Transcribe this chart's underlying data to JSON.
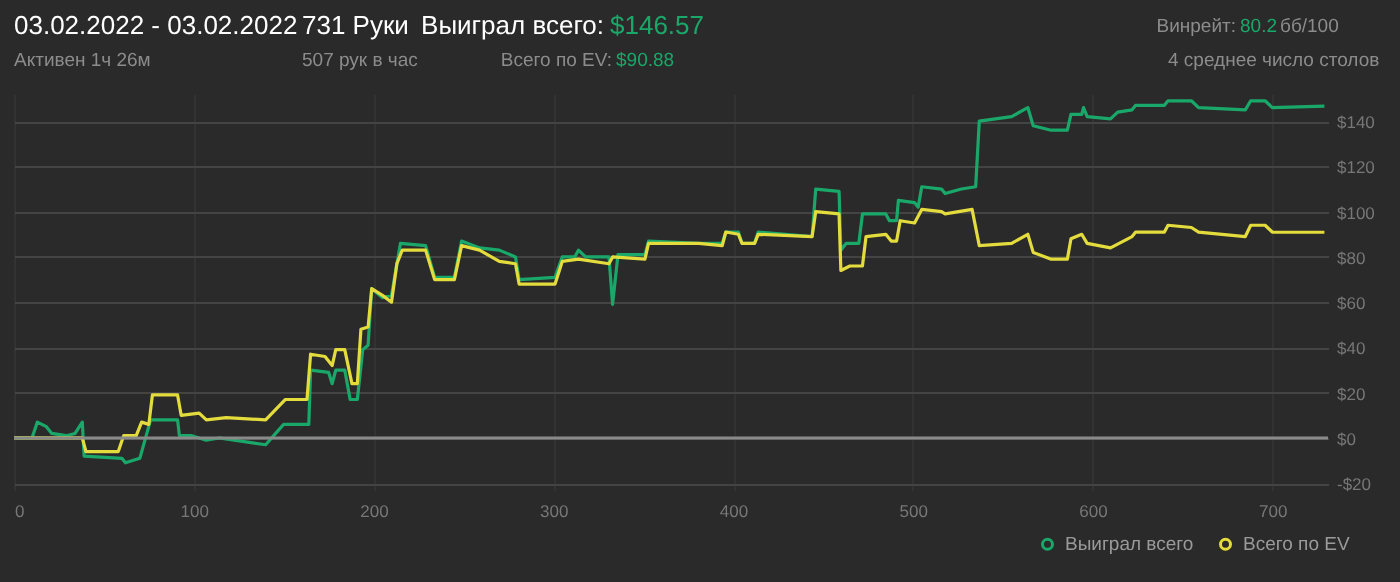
{
  "chart_data": {
    "type": "line",
    "title": "03.02.2022 - 03.02.2022",
    "subtitle": "Активен 1ч 26м",
    "annotations": [
      "731 Руки",
      "507 рук в час",
      "Выиграл всего:",
      "$146.57",
      "Всего по EV:",
      "$90.88",
      "Винрейт:",
      "80.2",
      "бб/100",
      "4 среднее число столов"
    ],
    "xlim": [
      0,
      731
    ],
    "xticks": [
      0,
      100,
      200,
      300,
      400,
      500,
      600,
      700
    ],
    "ylim": [
      -23,
      152
    ],
    "yticks": [
      {
        "value": -20,
        "label": "-$20"
      },
      {
        "value": 0,
        "label": "$0"
      },
      {
        "value": 20,
        "label": "$20"
      },
      {
        "value": 40,
        "label": "$40"
      },
      {
        "value": 60,
        "label": "$60"
      },
      {
        "value": 80,
        "label": "$80"
      },
      {
        "value": 100,
        "label": "$100"
      },
      {
        "value": 120,
        "label": "$120"
      },
      {
        "value": 140,
        "label": "$140"
      }
    ],
    "grid": true,
    "legend": "bottom right",
    "ref_lines": [
      {
        "axis": "y",
        "value": 0,
        "color": "#8a8a8a"
      }
    ],
    "series": [
      {
        "name": "Выиграл всего",
        "color": "#1aa86a",
        "x": [
          0,
          10,
          13,
          18,
          21,
          29,
          34,
          38,
          39,
          60,
          62,
          70,
          76,
          91,
          92,
          99,
          107,
          114,
          140,
          150,
          164,
          165,
          175,
          177,
          179,
          184,
          187,
          191,
          194,
          197,
          199,
          205,
          210,
          215,
          229,
          234,
          245,
          249,
          259,
          270,
          279,
          281,
          301,
          305,
          312,
          314,
          318,
          331,
          333,
          336,
          351,
          353,
          381,
          394,
          396,
          403,
          405,
          412,
          414,
          444,
          446,
          459,
          460,
          463,
          470,
          472,
          485,
          487,
          491,
          492,
          501,
          503,
          505,
          516,
          518,
          527,
          535,
          537,
          546,
          555,
          564,
          567,
          577,
          586,
          588,
          594,
          595,
          597,
          610,
          614,
          622,
          624,
          640,
          642,
          655,
          659,
          685,
          688,
          696,
          700,
          729
        ],
        "values": [
          0,
          0,
          7,
          5,
          2,
          1,
          2,
          7,
          -8,
          -9,
          -11,
          -9,
          8,
          8,
          1,
          1,
          -1,
          0,
          -3,
          6,
          6,
          30,
          29,
          24,
          30,
          30,
          17,
          17,
          39,
          41,
          66,
          62,
          63,
          86,
          85,
          71,
          71,
          87,
          84,
          83,
          80,
          70,
          71,
          80,
          80,
          83,
          80,
          80,
          59,
          81,
          81,
          87,
          86,
          86,
          91,
          91,
          86,
          86,
          91,
          89,
          110,
          109,
          83,
          86,
          86,
          99,
          99,
          96,
          96,
          105,
          104,
          102,
          111,
          110,
          108,
          110,
          111,
          140,
          141,
          142,
          146,
          138,
          136,
          136,
          143,
          143,
          146,
          142,
          141,
          144,
          145,
          147,
          147,
          149,
          149,
          146,
          145,
          149,
          149,
          146,
          146.6
        ]
      },
      {
        "name": "Всего по EV",
        "color": "#e3dc3c",
        "x": [
          0,
          38,
          40,
          58,
          61,
          68,
          71,
          75,
          77,
          91,
          93,
          103,
          107,
          118,
          140,
          151,
          163,
          165,
          173,
          177,
          179,
          184,
          188,
          191,
          193,
          197,
          199,
          205,
          210,
          213,
          216,
          229,
          234,
          245,
          249,
          259,
          270,
          279,
          281,
          301,
          305,
          314,
          331,
          333,
          351,
          353,
          381,
          394,
          396,
          403,
          405,
          412,
          414,
          444,
          446,
          459,
          460,
          465,
          472,
          474,
          485,
          488,
          491,
          493,
          501,
          505,
          516,
          518,
          533,
          537,
          555,
          564,
          567,
          577,
          586,
          588,
          594,
          597,
          610,
          622,
          624,
          640,
          642,
          655,
          659,
          685,
          688,
          696,
          700,
          729
        ],
        "values": [
          0,
          0,
          -6,
          -6,
          1,
          1,
          7,
          6,
          19,
          19,
          10,
          11,
          8,
          9,
          8,
          17,
          17,
          37,
          36,
          32,
          39,
          39,
          24,
          24,
          48,
          49,
          66,
          63,
          60,
          77,
          83,
          83,
          70,
          70,
          85,
          83,
          78,
          77,
          68,
          68,
          78,
          79,
          77,
          80,
          79,
          86,
          86,
          85,
          91,
          90,
          86,
          86,
          90,
          89,
          100,
          99,
          74,
          76,
          76,
          89,
          90,
          87,
          87,
          96,
          95,
          101,
          100,
          99,
          101,
          85,
          86,
          90,
          82,
          79,
          79,
          88,
          90,
          86,
          84,
          89,
          91,
          91,
          94,
          93,
          91,
          89,
          94,
          94,
          91,
          90.9
        ]
      }
    ]
  }
}
